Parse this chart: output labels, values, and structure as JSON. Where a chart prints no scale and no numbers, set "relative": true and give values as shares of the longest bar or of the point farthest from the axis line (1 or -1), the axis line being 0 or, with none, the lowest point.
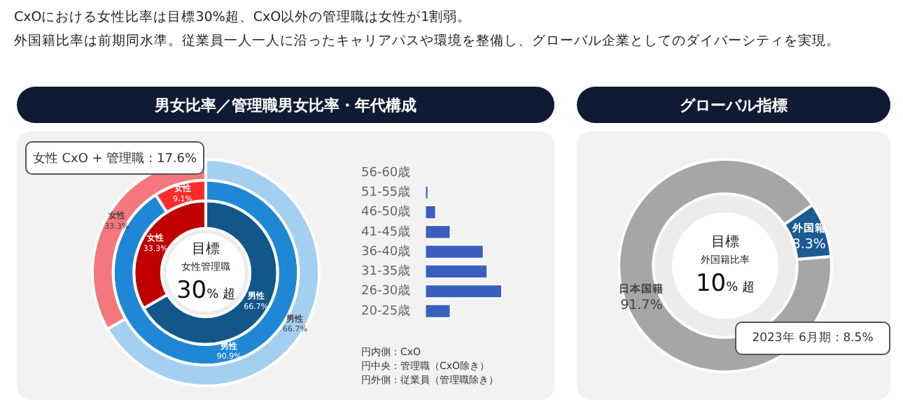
{
  "chart_data": [
    {
      "type": "donut",
      "title": "男女比率／管理職男女比率・年代構成",
      "categories": [
        "男性",
        "女性"
      ],
      "series": [
        {
          "colors": [
            "#12578a",
            "#c00000"
          ],
          "values": [
            66.7,
            33.3
          ],
          "value_labels": [
            "66.7%",
            "33.3%"
          ]
        },
        {
          "colors": [
            "#1e88d6",
            "#ff2b2b"
          ],
          "values": [
            90.9,
            9.1
          ],
          "value_labels": [
            "90.9%",
            "9.1%"
          ]
        },
        {
          "colors": [
            "#a3cff0",
            "#f4777d"
          ],
          "values": [
            66.7,
            33.3
          ],
          "value_labels": [
            "66.7%",
            "33.3%"
          ]
        }
      ],
      "annotations": [
        "CxOにおける女性比率は目標30%超、CxO以外の管理職は女性が1割弱。",
        "外国籍比率は前期同水準。従業員一人一人に沿ったキャリアパスや環境を整備し、グローバル企業としてのダイバーシティを実現。",
        "女性 CxO + 管理職 : 17.6%",
        "目標",
        "女性管理職",
        "30% 超",
        "円内側：CxO",
        "円中央：管理職（CxO除き）",
        "円外側：従業員（管理職除き）"
      ],
      "legend": false
    },
    {
      "type": "bar",
      "orientation": "horizontal",
      "relative": true,
      "categories": [
        "56-60歳",
        "51-55歳",
        "46-50歳",
        "41-45歳",
        "36-40歳",
        "31-35歳",
        "26-30歳",
        "20-25歳"
      ],
      "values": [
        0,
        0.04,
        0.14,
        0.33,
        0.76,
        0.81,
        1,
        0.33
      ],
      "color": "#3a5fbf",
      "legend": false
    },
    {
      "type": "donut",
      "title": "グローバル指標",
      "categories": [
        "日本国籍",
        "外国籍"
      ],
      "values": [
        91.7,
        8.3
      ],
      "colors": [
        "#a6a6a6",
        "#1a5b92"
      ],
      "value_labels": [
        "91.7%",
        "8.3%"
      ],
      "annotations": [
        "目標",
        "外国籍比率",
        "10% 超",
        "2023年 6月期 : 8.5%"
      ],
      "legend": false
    }
  ]
}
